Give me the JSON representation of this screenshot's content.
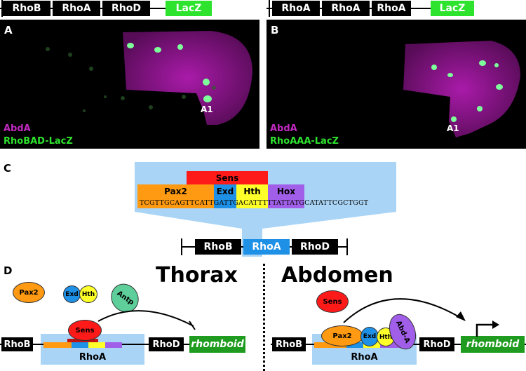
{
  "topLeft": {
    "boxes": [
      "RhoB",
      "RhoA",
      "RhoD"
    ],
    "reporter": "LacZ"
  },
  "topRight": {
    "boxes": [
      "RhoA",
      "RhoA",
      "RhoA"
    ],
    "reporter": "LacZ"
  },
  "panelA": {
    "letter": "A",
    "marker": "A1",
    "stain1": "AbdA",
    "stain2": "RhoBAD-LacZ"
  },
  "panelB": {
    "letter": "B",
    "marker": "A1",
    "stain1": "AbdA",
    "stain2": "RhoAAA-LacZ"
  },
  "panelC": {
    "letter": "C",
    "sens": "Sens",
    "segments": [
      "Pax2",
      "Exd",
      "Hth",
      "Hox"
    ],
    "sequence": "TCGTTGCAGTTCATTGATTGACATTTTTATTATGCATATTCGCTGGT",
    "construct": [
      "RhoB",
      "RhoA",
      "RhoD"
    ]
  },
  "panelD": {
    "letter": "D",
    "thorax": {
      "title": "Thorax",
      "factors": [
        "Pax2",
        "Exd",
        "Hth",
        "Antp"
      ],
      "bound": "Sens",
      "boxes": [
        "RhoB",
        "RhoD"
      ],
      "enhancer": "RhoA",
      "gene": "rhomboid"
    },
    "abdomen": {
      "title": "Abdomen",
      "free": "Sens",
      "bound": [
        "Pax2",
        "Exd",
        "Hth",
        "Abd-A"
      ],
      "boxes": [
        "RhoB",
        "RhoD"
      ],
      "enhancer": "RhoA",
      "gene": "rhomboid"
    }
  },
  "colors": {
    "sens": "#ff1a1a",
    "pax2": "#ff9a12",
    "exd": "#1e90e6",
    "hth": "#ffff2a",
    "hox": "#a15ee8",
    "antp": "#5ecf9a",
    "enhancer_bg": "#a9d4f5",
    "reporter": "#2ee32e",
    "abda_stain": "#c02ac0"
  }
}
